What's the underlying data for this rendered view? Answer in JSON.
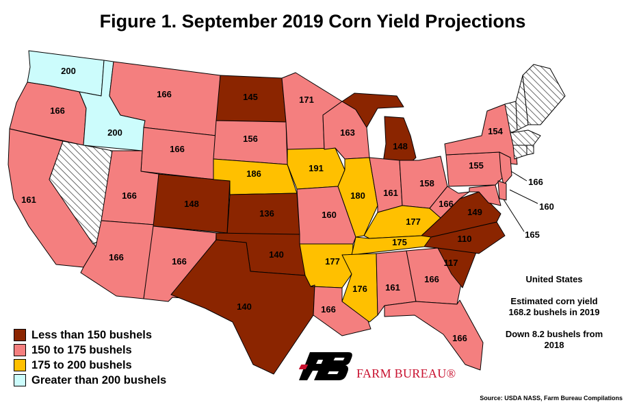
{
  "title": "Figure 1. September 2019 Corn Yield Projections",
  "colors": {
    "less_150": "#8b2500",
    "150_175": "#f47f7f",
    "175_200": "#ffc000",
    "greater_200": "#ccfcfc",
    "no_data": "#ffffff"
  },
  "legend": [
    {
      "label": "Less than 150 bushels",
      "color_key": "less_150"
    },
    {
      "label": "150 to 175 bushels",
      "color_key": "150_175"
    },
    {
      "label": "175 to 200 bushels",
      "color_key": "175_200"
    },
    {
      "label": "Greater than 200 bushels",
      "color_key": "greater_200"
    }
  ],
  "states": {
    "WA": {
      "value": "200",
      "color_key": "greater_200"
    },
    "OR": {
      "value": "166",
      "color_key": "150_175"
    },
    "CA": {
      "value": "161",
      "color_key": "150_175"
    },
    "NV": {
      "value": "",
      "color_key": "no_data"
    },
    "ID": {
      "value": "200",
      "color_key": "greater_200"
    },
    "MT": {
      "value": "166",
      "color_key": "150_175"
    },
    "WY": {
      "value": "166",
      "color_key": "150_175"
    },
    "UT": {
      "value": "166",
      "color_key": "150_175"
    },
    "AZ": {
      "value": "166",
      "color_key": "150_175"
    },
    "CO": {
      "value": "148",
      "color_key": "less_150"
    },
    "NM": {
      "value": "166",
      "color_key": "150_175"
    },
    "ND": {
      "value": "145",
      "color_key": "less_150"
    },
    "SD": {
      "value": "156",
      "color_key": "150_175"
    },
    "NE": {
      "value": "186",
      "color_key": "175_200"
    },
    "KS": {
      "value": "136",
      "color_key": "less_150"
    },
    "OK": {
      "value": "140",
      "color_key": "less_150"
    },
    "TX": {
      "value": "140",
      "color_key": "less_150"
    },
    "MN": {
      "value": "171",
      "color_key": "150_175"
    },
    "IA": {
      "value": "191",
      "color_key": "175_200"
    },
    "MO": {
      "value": "160",
      "color_key": "150_175"
    },
    "AR": {
      "value": "177",
      "color_key": "175_200"
    },
    "LA": {
      "value": "166",
      "color_key": "150_175"
    },
    "WI": {
      "value": "163",
      "color_key": "150_175"
    },
    "IL": {
      "value": "180",
      "color_key": "175_200"
    },
    "MI": {
      "value": "148",
      "color_key": "less_150"
    },
    "UP": {
      "value": "",
      "color_key": "less_150"
    },
    "IN": {
      "value": "161",
      "color_key": "150_175"
    },
    "OH": {
      "value": "158",
      "color_key": "150_175"
    },
    "KY": {
      "value": "177",
      "color_key": "175_200"
    },
    "TN": {
      "value": "175",
      "color_key": "175_200"
    },
    "MS": {
      "value": "176",
      "color_key": "175_200"
    },
    "AL": {
      "value": "161",
      "color_key": "150_175"
    },
    "GA": {
      "value": "166",
      "color_key": "150_175"
    },
    "FL": {
      "value": "166",
      "color_key": "150_175"
    },
    "SC": {
      "value": "117",
      "color_key": "less_150"
    },
    "NC": {
      "value": "110",
      "color_key": "less_150"
    },
    "VA": {
      "value": "149",
      "color_key": "less_150"
    },
    "WV": {
      "value": "166",
      "color_key": "150_175"
    },
    "PA": {
      "value": "155",
      "color_key": "150_175"
    },
    "NY": {
      "value": "154",
      "color_key": "150_175"
    },
    "NJ": {
      "value": "166",
      "color_key": "150_175"
    },
    "DE": {
      "value": "160",
      "color_key": "150_175"
    },
    "MD": {
      "value": "165",
      "color_key": "150_175"
    },
    "VT": {
      "value": "",
      "color_key": "no_data"
    },
    "NH": {
      "value": "",
      "color_key": "no_data"
    },
    "ME": {
      "value": "",
      "color_key": "no_data"
    },
    "MA": {
      "value": "",
      "color_key": "no_data"
    },
    "CT": {
      "value": "",
      "color_key": "no_data"
    },
    "RI": {
      "value": "",
      "color_key": "no_data"
    }
  },
  "summary": {
    "heading": "United States",
    "line1": "Estimated corn yield",
    "line2": "168.2 bushels in 2019",
    "line3": "Down 8.2 bushels from",
    "line4": "2018"
  },
  "brand": "FARM BUREAU®",
  "source": "Source: USDA NASS, Farm Bureau Compilations"
}
